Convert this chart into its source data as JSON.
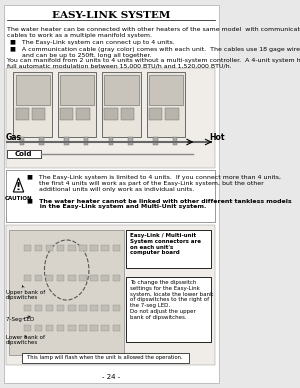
{
  "bg_color": "#f5f5f0",
  "border_color": "#555555",
  "page_bg": "#e8e8e8",
  "title": "EASY-LINK SYSTEM",
  "title_fontsize": 7.5,
  "body_fontsize": 4.5,
  "small_fontsize": 4.0,
  "para1": "The water heater can be connected with other heaters of the same model  with communication\ncables to work as a multiple manifold system.",
  "bullet1": "■   The Easy-Link system can connect up to 4 units.",
  "bullet2": "■   A communication cable (gray color) comes with each unit.  The cables use 18 gage wire\n      and can be up to 250ft. long all together.",
  "para2": "You can manifold from 2 units to 4 units without a multi-system controller.  A 4-unit system has\nfull automatic modulation between 15,000 BTU/h and 1,520,000 BTU/h.",
  "caution_bullet1": "■   The Easy-Link system is limited to 4 units.  If you connect more than 4 units,\n      the first 4 units will work as part of the Easy-Link system, but the other\n      additional units will only work as individual units.",
  "caution_bullet2": "■   The water heater cannot be linked with other different tankless models\n      in the Easy-Link system and Multi-Unit system.",
  "caution_label": "CAUTION",
  "callout1_title": "Easy-Link / Multi-unit\nSystem connectors are\non each unit's\ncomputer board",
  "callout2_text": "To change the dipswitch\nsettings for the Easy-Link\nsystem, locate the lower bank\nof dipswitches to the right of\nthe 7-seg LED.\nDo not adjust the upper\nbank of dipswitches.",
  "label_upper": "Upper bank of\ndipswitches",
  "label_7seg": "7-Seg LED",
  "label_lower": "Lower bank of\ndipswitches",
  "lamp_text": "This lamp will flash when the unit is allowed the operation.",
  "page_num": "- 24 -",
  "gas_label": "Gas",
  "hot_label": "Hot",
  "cold_label": "Cold"
}
